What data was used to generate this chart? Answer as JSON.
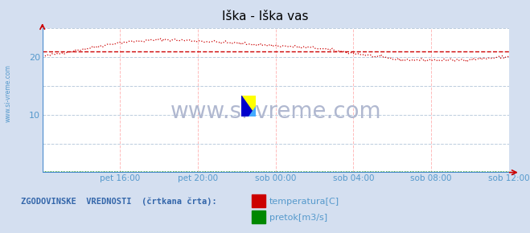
{
  "title": "Iška - Iška vas",
  "title_color": "#000000",
  "bg_color": "#d4dff0",
  "plot_bg_color": "#ffffff",
  "watermark_text": "www.si-vreme.com",
  "watermark_color": "#b0b8d0",
  "left_label": "www.si-vreme.com",
  "left_label_color": "#5599cc",
  "xlabel_color": "#5599cc",
  "ylabel_color": "#5599cc",
  "grid_color_v": "#ffbbbb",
  "grid_color_h": "#bbccdd",
  "xlim": [
    0,
    288
  ],
  "ylim": [
    0,
    25
  ],
  "yticks": [
    10,
    20
  ],
  "xtick_labels": [
    "pet 16:00",
    "pet 20:00",
    "sob 00:00",
    "sob 04:00",
    "sob 08:00",
    "sob 12:00"
  ],
  "xtick_positions": [
    48,
    96,
    144,
    192,
    240,
    288
  ],
  "temp_color": "#cc0000",
  "flow_color": "#008800",
  "legend_label1": "temperatura[C]",
  "legend_label2": "pretok[m3/s]",
  "legend_color1": "#cc0000",
  "legend_color2": "#008800",
  "footer_text": "ZGODOVINSKE  VREDNOSTI  (črtkana črta):",
  "footer_color": "#3366aa",
  "avg_temp": 21.0,
  "avg_flow": 0.08,
  "axis_line_color": "#4488cc",
  "arrow_color": "#cc0000"
}
